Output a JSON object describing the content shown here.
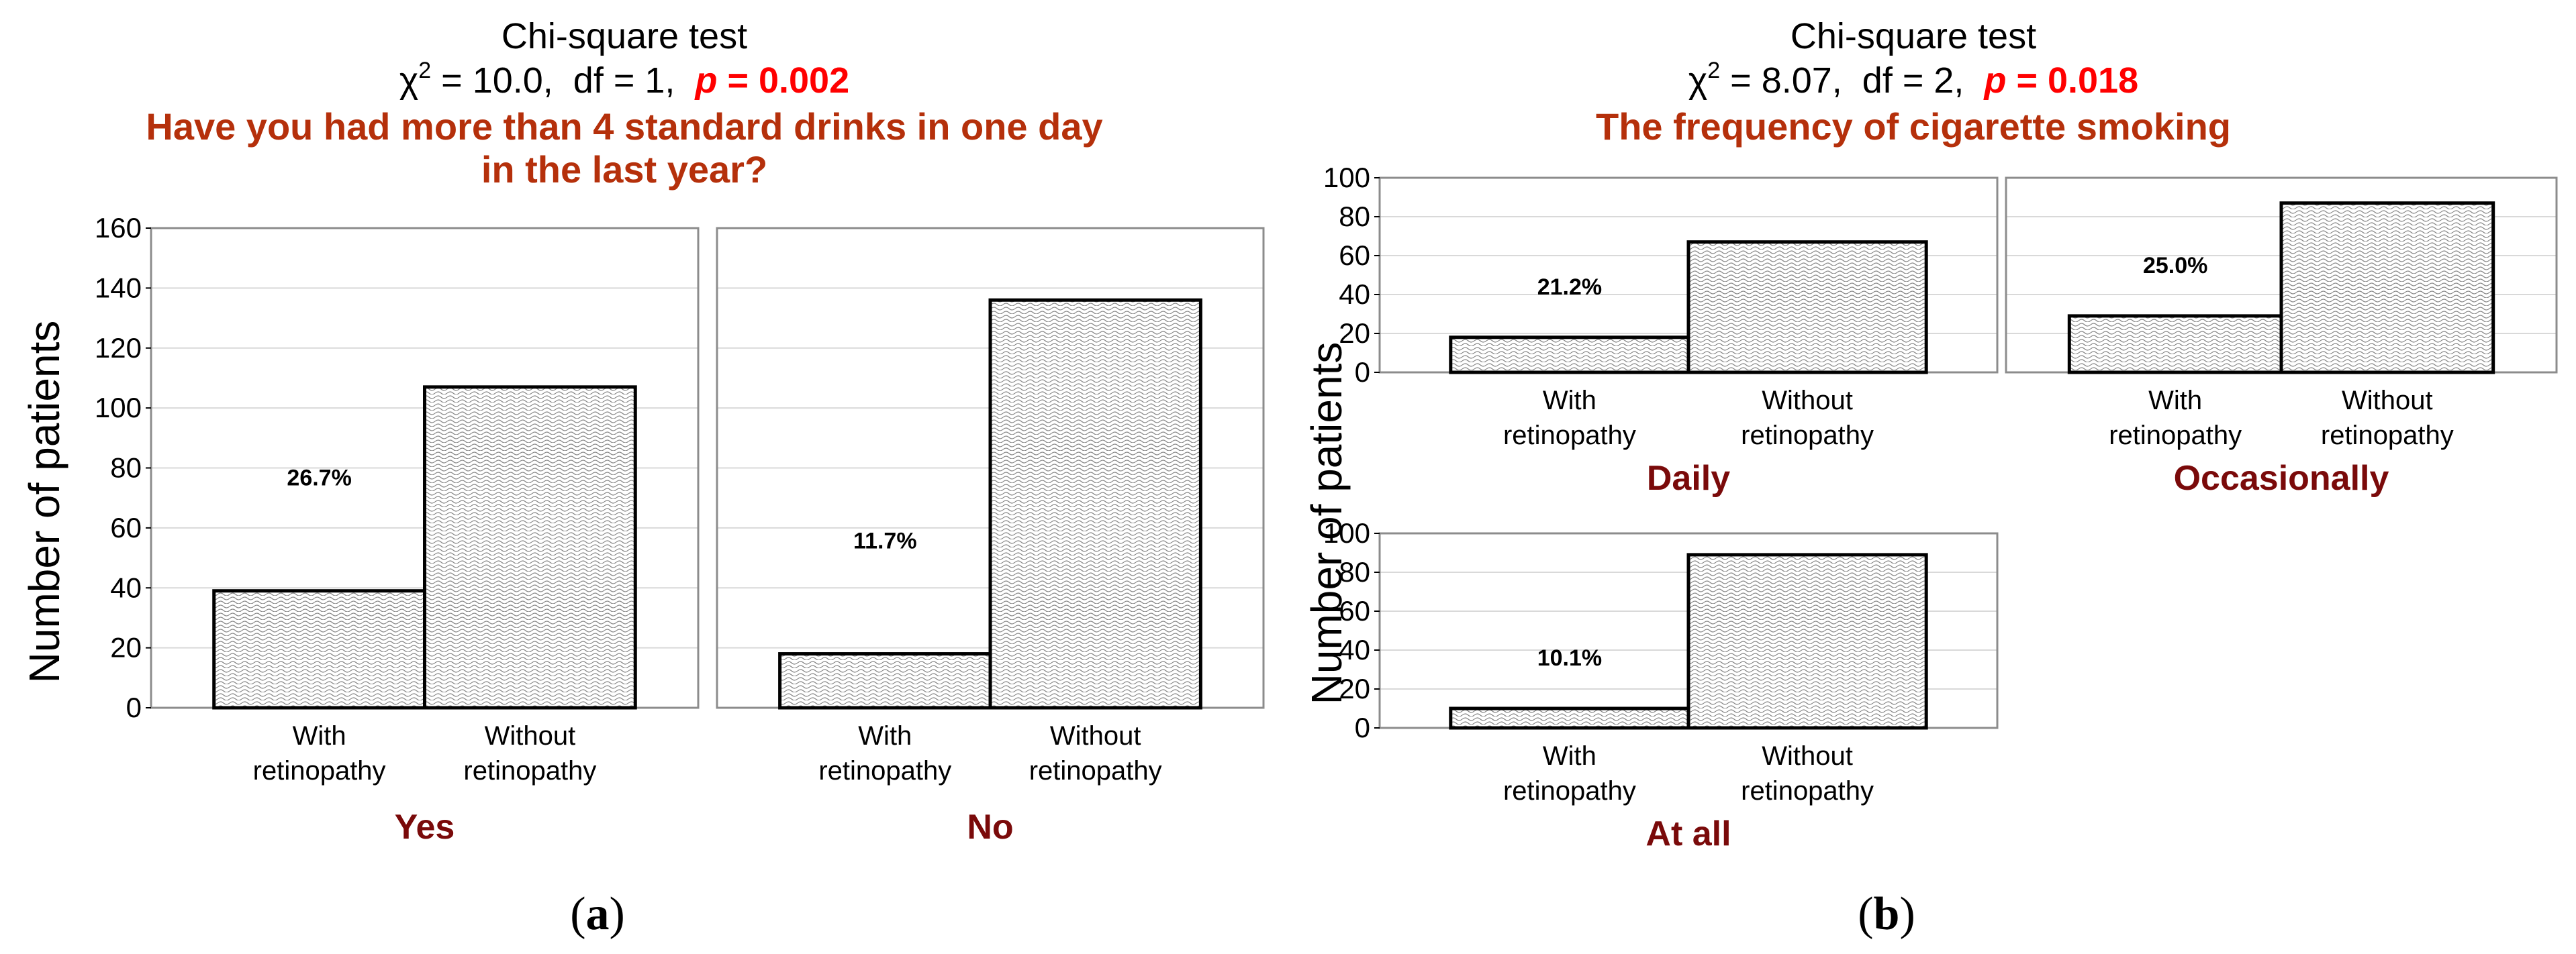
{
  "panel_a": {
    "test_name": "Chi-square test",
    "chi_symbol": "χ",
    "chi_sup": "2",
    "stat_rest": " = 10.0,  df = 1,  ",
    "p_label": "p",
    "p_rest": " = 0.002",
    "question_line1": "Have you had more than 4 standard drinks in one day",
    "question_line2": "in the last year?",
    "ylabel": "Number of patients",
    "panel_label": "(a)",
    "panel_letter": "a"
  },
  "panel_b": {
    "test_name": "Chi-square test",
    "chi_symbol": "χ",
    "chi_sup": "2",
    "stat_rest": " = 8.07,  df = 2,  ",
    "p_label": "p",
    "p_rest": " = 0.018",
    "question_line1": "The frequency of cigarette smoking",
    "ylabel": "Number of patients",
    "panel_label": "(b)",
    "panel_letter": "b"
  },
  "colors": {
    "title_red": "#b5300b",
    "p_red": "#ff0000",
    "group_dark_red": "#7a0a0a",
    "bar_edge": "#000000",
    "grid": "#d9d9d9"
  },
  "chart_data": [
    {
      "type": "bar",
      "panel": "a",
      "group": "Yes",
      "categories": [
        "With\nretinopathy",
        "Without\nretinopathy"
      ],
      "values": [
        39,
        107
      ],
      "annotation": "26.7%",
      "ylim": [
        0,
        160
      ],
      "yticks": [
        0,
        20,
        40,
        60,
        80,
        100,
        120,
        140,
        160
      ],
      "grid": true
    },
    {
      "type": "bar",
      "panel": "a",
      "group": "No",
      "categories": [
        "With\nretinopathy",
        "Without\nretinopathy"
      ],
      "values": [
        18,
        136
      ],
      "annotation": "11.7%",
      "ylim": [
        0,
        160
      ],
      "yticks": [
        0,
        20,
        40,
        60,
        80,
        100,
        120,
        140,
        160
      ],
      "grid": true
    },
    {
      "type": "bar",
      "panel": "b",
      "group": "Daily",
      "categories": [
        "With\nretinopathy",
        "Without\nretinopathy"
      ],
      "values": [
        18,
        67
      ],
      "annotation": "21.2%",
      "ylim": [
        0,
        100
      ],
      "yticks": [
        0,
        20,
        40,
        60,
        80,
        100
      ],
      "grid": true
    },
    {
      "type": "bar",
      "panel": "b",
      "group": "Occasionally",
      "categories": [
        "With\nretinopathy",
        "Without\nretinopathy"
      ],
      "values": [
        29,
        87
      ],
      "annotation": "25.0%",
      "ylim": [
        0,
        100
      ],
      "yticks": [
        0,
        20,
        40,
        60,
        80,
        100
      ],
      "grid": true
    },
    {
      "type": "bar",
      "panel": "b",
      "group": "At all",
      "categories": [
        "With\nretinopathy",
        "Without\nretinopathy"
      ],
      "values": [
        10,
        89
      ],
      "annotation": "10.1%",
      "ylim": [
        0,
        100
      ],
      "yticks": [
        0,
        20,
        40,
        60,
        80,
        100
      ],
      "grid": true
    }
  ]
}
